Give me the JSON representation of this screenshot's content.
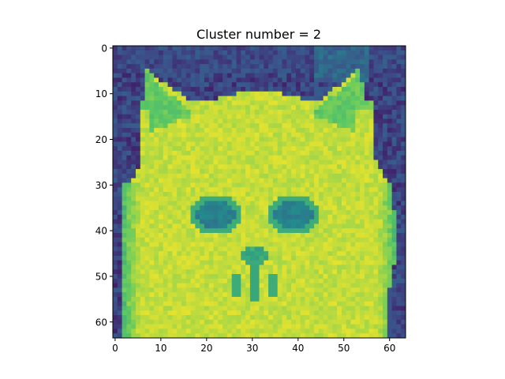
{
  "chart_data": {
    "type": "heatmap",
    "title": "Cluster number = 2",
    "xlabel": "",
    "ylabel": "",
    "image_shape": [
      64,
      64
    ],
    "xlim": [
      -0.5,
      63.5
    ],
    "ylim": [
      63.5,
      -0.5
    ],
    "x_ticks": [
      0,
      10,
      20,
      30,
      40,
      50,
      60
    ],
    "y_ticks": [
      0,
      10,
      20,
      30,
      40,
      50,
      60
    ],
    "colormap": "viridis",
    "colormap_stops": [
      "#440154",
      "#3b528b",
      "#21918c",
      "#5ec962",
      "#fde725"
    ],
    "image_content": "64x64 grayscale-style cat face image rendered with viridis colormap",
    "grid": false
  }
}
